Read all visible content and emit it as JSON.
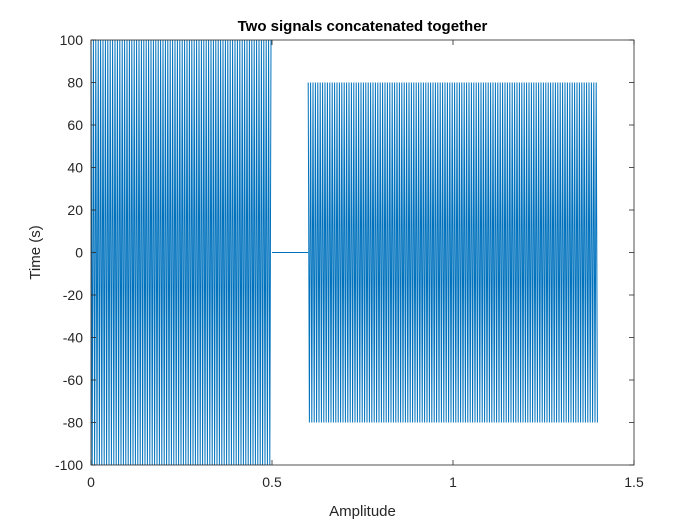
{
  "chart_data": {
    "type": "line",
    "title": "Two signals concatenated together",
    "xlabel": "Amplitude",
    "ylabel": "Time (s)",
    "xlim": [
      0,
      1.5
    ],
    "ylim": [
      -100,
      100
    ],
    "x_ticks": [
      0,
      0.5,
      1,
      1.5
    ],
    "x_tick_labels": [
      "0",
      "0.5",
      "1",
      "1.5"
    ],
    "y_ticks": [
      -100,
      -80,
      -60,
      -40,
      -20,
      0,
      20,
      40,
      60,
      80,
      100
    ],
    "y_tick_labels": [
      "-100",
      "-80",
      "-60",
      "-40",
      "-20",
      "0",
      "20",
      "40",
      "60",
      "80",
      "100"
    ],
    "grid": false,
    "line_color": "#0072BD",
    "segments": [
      {
        "x_start": 0,
        "x_end": 0.5,
        "amplitude": 100,
        "kind": "oscillation"
      },
      {
        "x_start": 0.5,
        "x_end": 0.6,
        "amplitude": 0,
        "kind": "flat"
      },
      {
        "x_start": 0.6,
        "x_end": 1.4,
        "amplitude": 80,
        "kind": "oscillation"
      }
    ]
  }
}
